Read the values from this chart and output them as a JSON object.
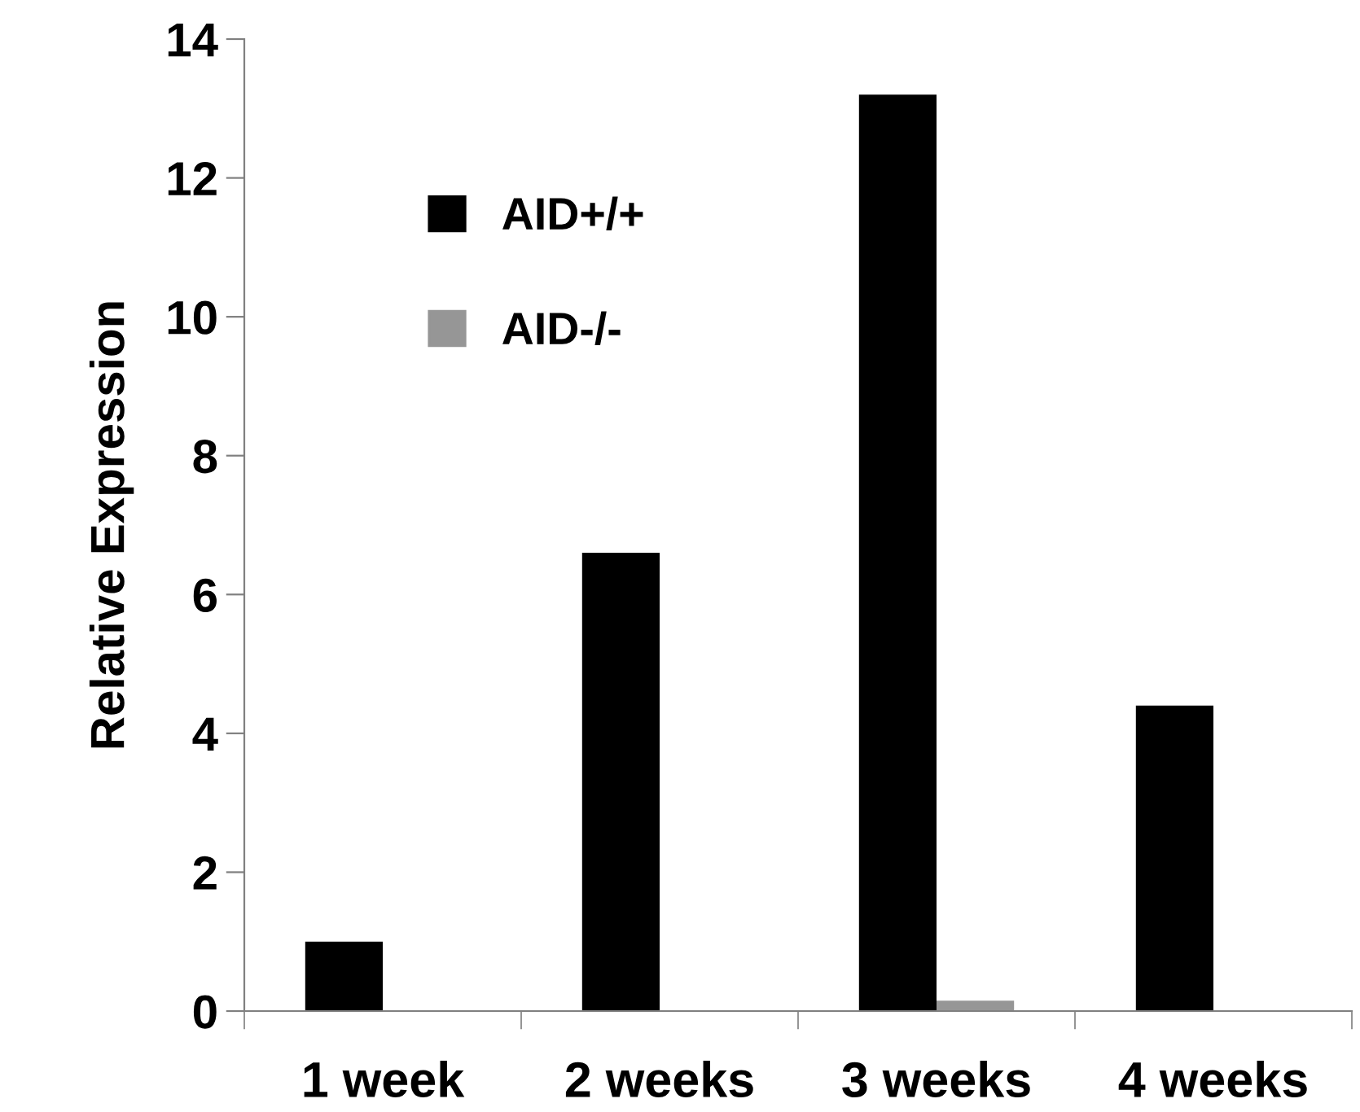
{
  "chart_data": {
    "type": "bar",
    "ylabel": "Relative Expression",
    "categories": [
      "1 week",
      "2 weeks",
      "3 weeks",
      "4 weeks"
    ],
    "series": [
      {
        "name": "AID+/+",
        "color": "#000000",
        "values": [
          1.0,
          6.6,
          13.2,
          4.4
        ]
      },
      {
        "name": "AID-/-",
        "color": "#969696",
        "values": [
          0,
          0,
          0.15,
          0
        ]
      }
    ],
    "ylim": [
      0,
      14
    ],
    "yticks": [
      0,
      2,
      4,
      6,
      8,
      10,
      12,
      14
    ],
    "grid": false,
    "legend": "top left"
  }
}
